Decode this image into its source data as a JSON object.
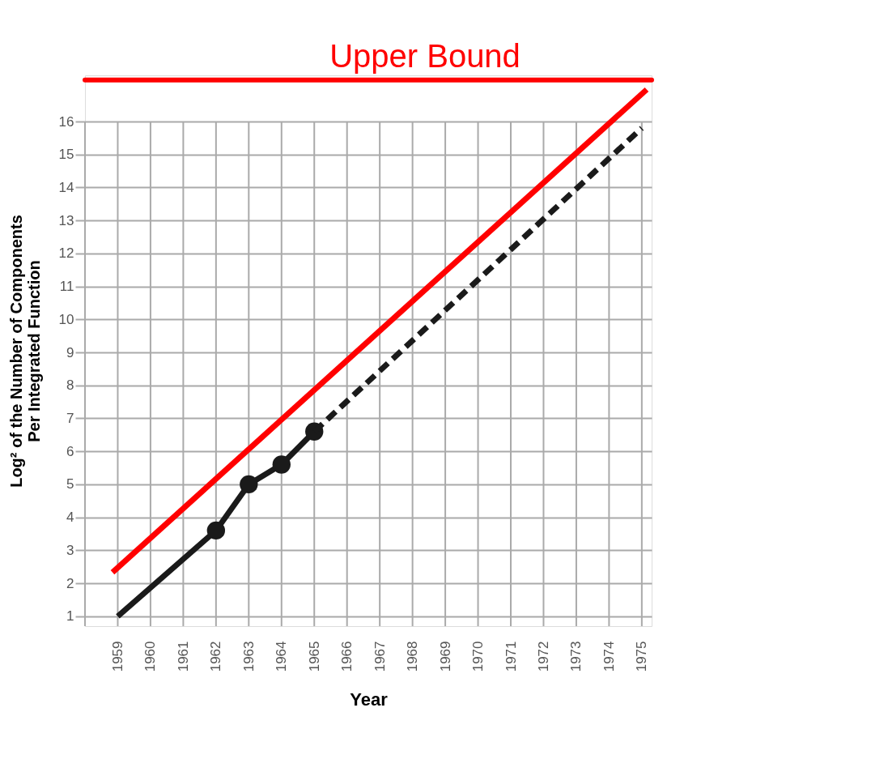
{
  "chart_data": {
    "type": "line",
    "xlabel": "Year",
    "ylabel": "Log² of the Number of Components\nPer Integrated Function",
    "xlim": [
      1958,
      1975.3
    ],
    "ylim": [
      0.7,
      17.4
    ],
    "xticks": [
      {
        "value": 1958,
        "label": null
      },
      1959,
      1960,
      1961,
      1962,
      1963,
      1964,
      1965,
      1966,
      1967,
      1968,
      1969,
      1970,
      1971,
      1972,
      1973,
      1974,
      1975
    ],
    "yticks": [
      1,
      2,
      3,
      4,
      5,
      6,
      7,
      8,
      9,
      10,
      11,
      12,
      13,
      14,
      15,
      16
    ],
    "grid": true,
    "series": [
      {
        "color": "#1a1a1a",
        "x": [
          1959,
          1962,
          1963,
          1964,
          1965
        ],
        "values": [
          1,
          3.6,
          5,
          5.6,
          6.6
        ],
        "line_style": "solid",
        "marker": "none"
      },
      {
        "type": "scatter",
        "color": "#1a1a1a",
        "x": [
          1962,
          1963,
          1964,
          1965
        ],
        "values": [
          3.6,
          5,
          5.6,
          6.6
        ],
        "marker": "circle"
      },
      {
        "color": "#1a1a1a",
        "x": [
          1965,
          1975
        ],
        "values": [
          6.6,
          15.8
        ],
        "line_style": "dashed",
        "marker": "none"
      },
      {
        "color": "#ff0000",
        "x": [
          1958.84,
          1975.15
        ],
        "values": [
          2.33,
          16.97
        ],
        "line_style": "solid",
        "marker": "none"
      }
    ],
    "ref_lines": [
      {
        "axis": "y",
        "value": 17.26,
        "label": "Upper Bound",
        "color": "#ff0000",
        "line_style": "solid"
      }
    ]
  }
}
